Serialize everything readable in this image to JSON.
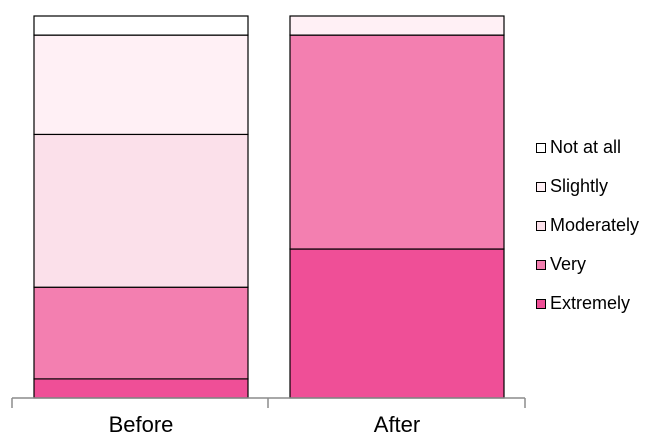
{
  "chart_data": {
    "type": "bar",
    "stacked": true,
    "percent": true,
    "categories": [
      "Before",
      "After"
    ],
    "ylim": [
      0,
      100
    ],
    "series": [
      {
        "name": "Extremely",
        "color": "#ef4f97",
        "values": [
          5,
          39
        ]
      },
      {
        "name": "Very",
        "color": "#f37fb0",
        "values": [
          24,
          56
        ]
      },
      {
        "name": "Moderately",
        "color": "#fbe0ea",
        "values": [
          40,
          0
        ]
      },
      {
        "name": "Slightly",
        "color": "#fff0f5",
        "values": [
          26,
          5
        ]
      },
      {
        "name": "Not at all",
        "color": "#ffffff",
        "values": [
          5,
          0
        ]
      }
    ],
    "legend_order": [
      "Not at all",
      "Slightly",
      "Moderately",
      "Very",
      "Extremely"
    ],
    "legend_position": "right",
    "grid": false
  }
}
